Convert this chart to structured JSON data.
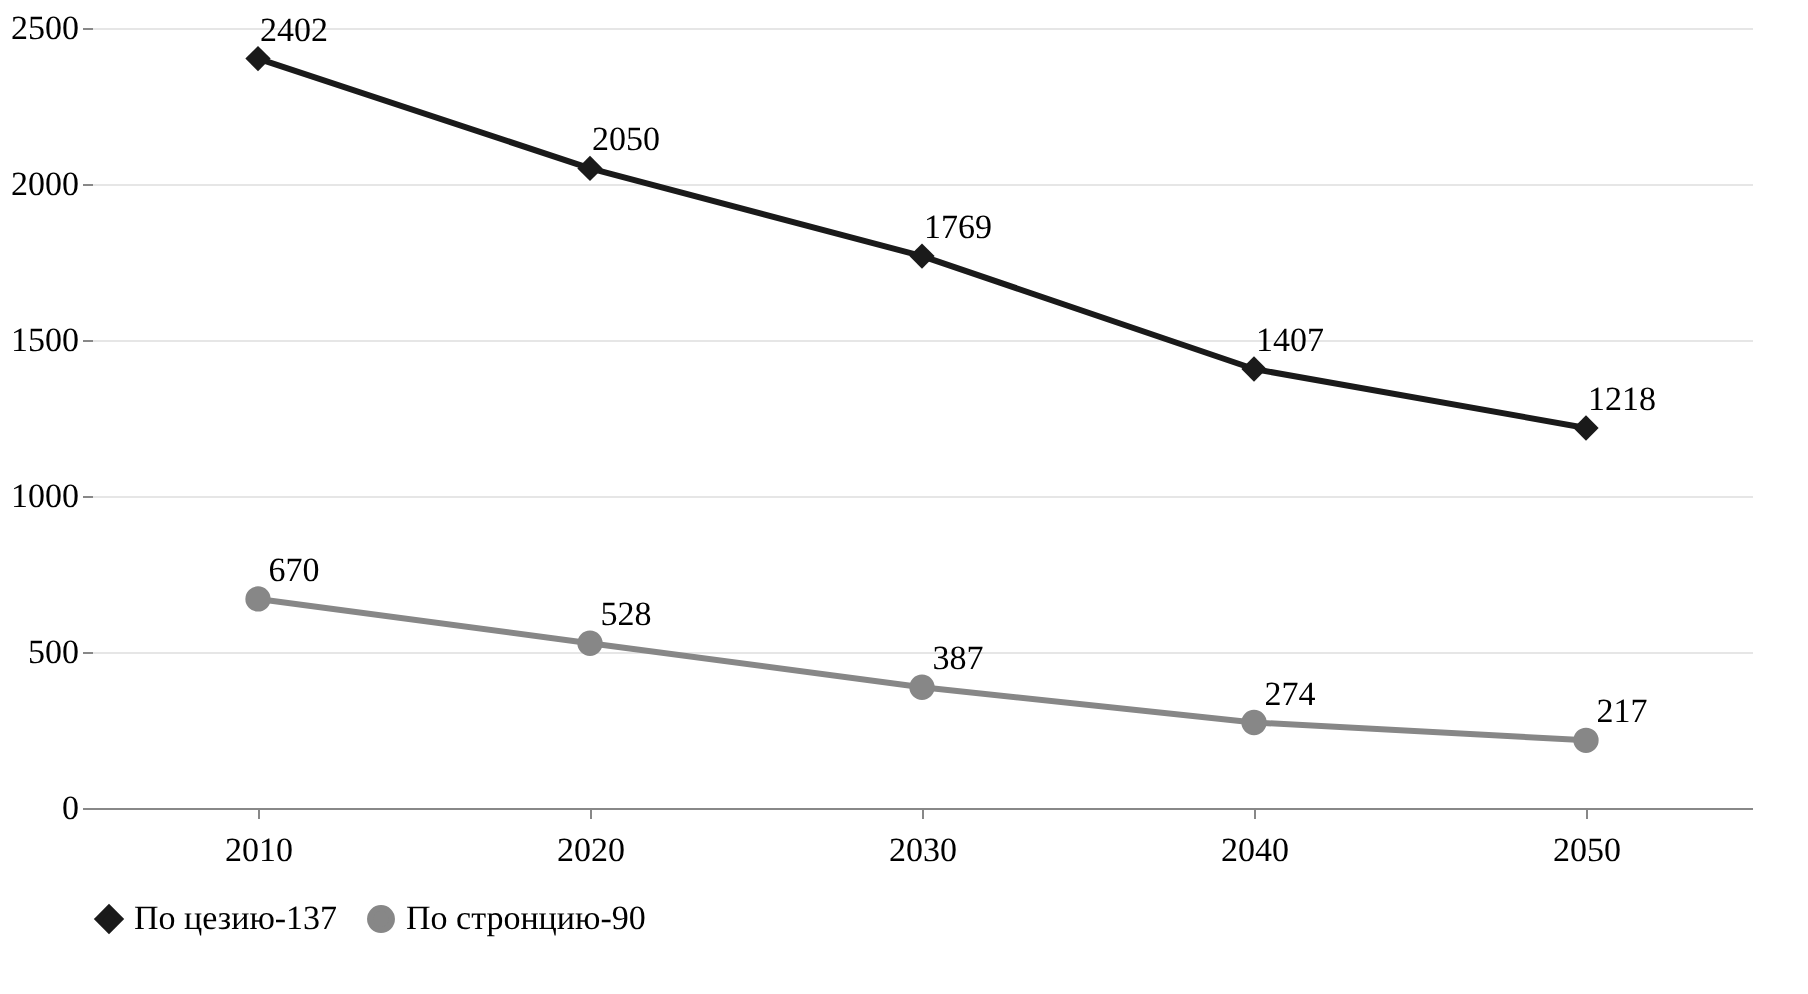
{
  "chart_data": {
    "type": "line",
    "categories": [
      "2010",
      "2020",
      "2030",
      "2040",
      "2050"
    ],
    "series": [
      {
        "name": "По цезию-137",
        "color": "#1a1a1a",
        "marker": "diamond",
        "values": [
          2402,
          2050,
          1769,
          1407,
          1218
        ]
      },
      {
        "name": "По стронцию-90",
        "color": "#878787",
        "marker": "circle",
        "values": [
          670,
          528,
          387,
          274,
          217
        ]
      }
    ],
    "ylim": [
      0,
      2500
    ],
    "yticks": [
      0,
      500,
      1000,
      1500,
      2000,
      2500
    ],
    "grid": "y",
    "legend": "bottom",
    "data_labels": true,
    "line_style": "solid"
  }
}
